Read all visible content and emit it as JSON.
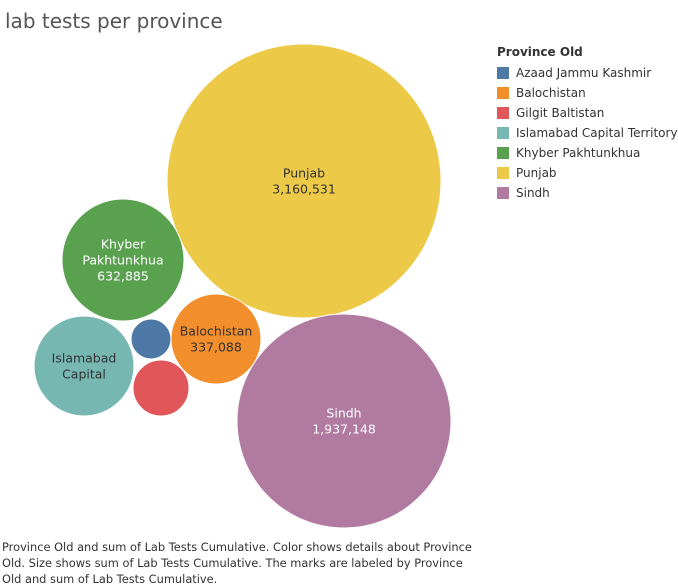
{
  "caption": "Province Old and sum of Lab Tests Cumulative.  Color shows details about Province Old.  Size shows sum of Lab Tests Cumulative.  The marks are labeled by Province Old and sum of Lab Tests Cumulative.",
  "chart_data": {
    "type": "packed-bubble",
    "title": "lab tests per province",
    "size_measure": "sum of Lab Tests Cumulative",
    "color_dimension": "Province Old",
    "legend": {
      "title": "Province Old",
      "placement": "top-right",
      "items": [
        {
          "label": "Azaad Jammu Kashmir",
          "color": "#4e79a7"
        },
        {
          "label": "Balochistan",
          "color": "#f28e2b"
        },
        {
          "label": "Gilgit Baltistan",
          "color": "#e15759"
        },
        {
          "label": "Islamabad Capital Territory",
          "color": "#76b7b2"
        },
        {
          "label": "Khyber Pakhtunkhua",
          "color": "#59a14f"
        },
        {
          "label": "Punjab",
          "color": "#edc948"
        },
        {
          "label": "Sindh",
          "color": "#b07aa1"
        }
      ]
    },
    "bubbles": [
      {
        "province": "Punjab",
        "value": 3160531,
        "label_lines": [
          "Punjab",
          "3,160,531"
        ],
        "color": "#edc948",
        "text_color": "#333333"
      },
      {
        "province": "Sindh",
        "value": 1937148,
        "label_lines": [
          "Sindh",
          "1,937,148"
        ],
        "color": "#b07aa1",
        "text_color": "#ffffff"
      },
      {
        "province": "Khyber Pakhtunkhua",
        "value": 632885,
        "label_lines": [
          "Khyber",
          "Pakhtunkhua",
          "632,885"
        ],
        "color": "#59a14f",
        "text_color": "#ffffff"
      },
      {
        "province": "Balochistan",
        "value": 337088,
        "label_lines": [
          "Balochistan",
          "337,088"
        ],
        "color": "#f28e2b",
        "text_color": "#333333"
      },
      {
        "province": "Islamabad Capital Territory",
        "label_lines": [
          "Islamabad",
          "Capital"
        ],
        "color": "#76b7b2",
        "text_color": "#333333"
      },
      {
        "province": "Gilgit Baltistan",
        "label_lines": [],
        "color": "#e15759"
      },
      {
        "province": "Azaad Jammu Kashmir",
        "label_lines": [],
        "color": "#4e79a7"
      }
    ]
  }
}
